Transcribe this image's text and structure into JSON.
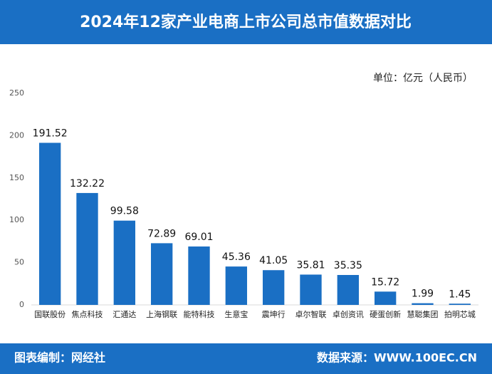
{
  "chart_data": {
    "type": "bar",
    "title": "2024年12家产业电商上市公司总市值数据对比",
    "unit_label": "单位：亿元（人民币）",
    "categories": [
      "国联股份",
      "焦点科技",
      "汇通达",
      "上海钢联",
      "能特科技",
      "生意宝",
      "震坤行",
      "卓尔智联",
      "卓创资讯",
      "硬蛋创新",
      "慧聪集团",
      "拍明芯城"
    ],
    "values": [
      191.52,
      132.22,
      99.58,
      72.89,
      69.01,
      45.36,
      41.05,
      35.81,
      35.35,
      15.72,
      1.99,
      1.45
    ],
    "color": "#1a6fc4",
    "ylim": [
      0,
      250
    ],
    "yticks": [
      0,
      50,
      100,
      150,
      200,
      250
    ],
    "grid": false
  },
  "footer": {
    "left": "图表编制：网经社",
    "right": "数据来源：WWW.100EC.CN"
  }
}
